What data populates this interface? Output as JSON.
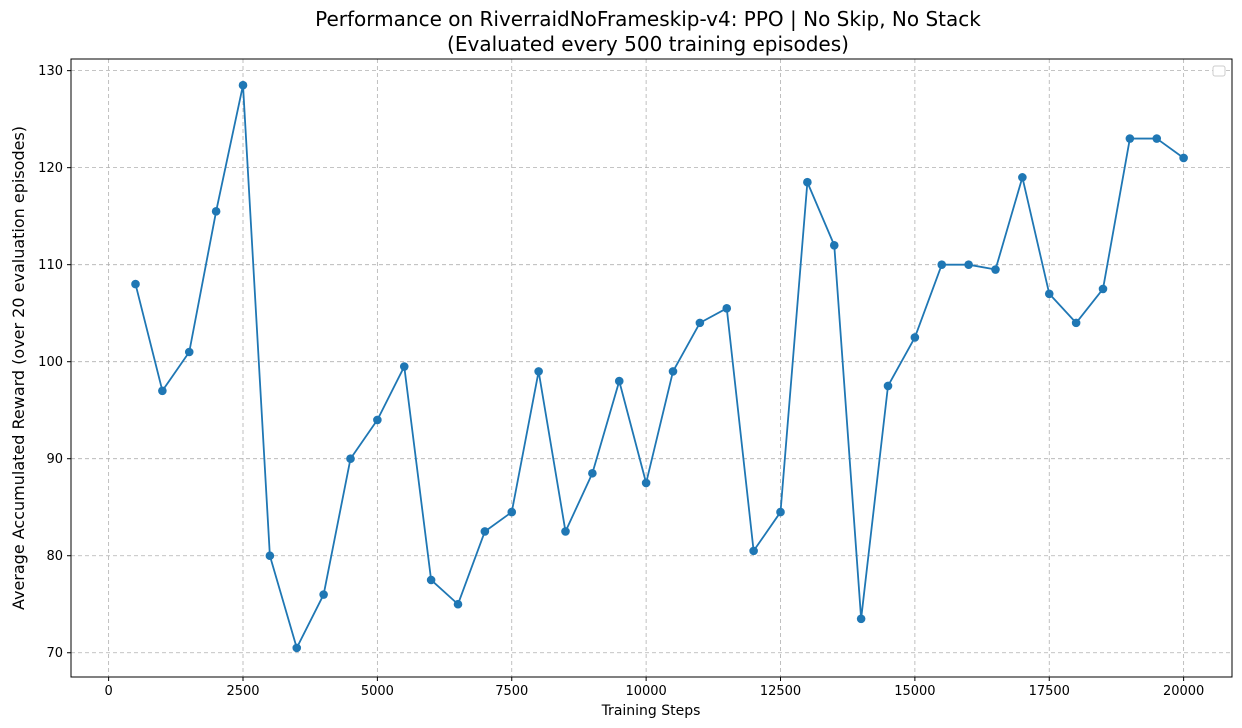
{
  "chart_data": {
    "type": "line",
    "title_lines": [
      "Performance on RiverraidNoFrameskip-v4: PPO | No Skip, No Stack",
      "(Evaluated every 500 training episodes)"
    ],
    "xlabel": "Training Steps",
    "ylabel": "Average Accumulated Reward (over 20 evaluation episodes)",
    "xlim": [
      -700,
      20900
    ],
    "ylim": [
      67.5,
      131.2
    ],
    "xticks": [
      0,
      2500,
      5000,
      7500,
      10000,
      12500,
      15000,
      17500,
      20000
    ],
    "yticks": [
      70,
      80,
      90,
      100,
      110,
      120,
      130
    ],
    "grid": true,
    "legend": "top-right",
    "color": "#1f77b4",
    "series": [
      {
        "x": [
          500,
          1000,
          1500,
          2000,
          2500,
          3000,
          3500,
          4000,
          4500,
          5000,
          5500,
          6000,
          6500,
          7000,
          7500,
          8000,
          8500,
          9000,
          9500,
          10000,
          10500,
          11000,
          11500,
          12000,
          12500,
          13000,
          13500,
          14000,
          14500,
          15000,
          15500,
          16000,
          16500,
          17000,
          17500,
          18000,
          18500,
          19000,
          19500,
          20000
        ],
        "values": [
          108,
          97,
          101,
          115.5,
          128.5,
          80,
          70.5,
          76,
          90,
          94,
          99.5,
          77.5,
          75,
          82.5,
          84.5,
          99,
          82.5,
          88.5,
          98,
          87.5,
          99,
          104,
          105.5,
          80.5,
          84.5,
          118.5,
          112,
          73.5,
          97.5,
          102.5,
          110,
          110,
          109.5,
          119,
          107,
          104,
          107.5,
          123,
          123,
          121
        ]
      }
    ]
  }
}
